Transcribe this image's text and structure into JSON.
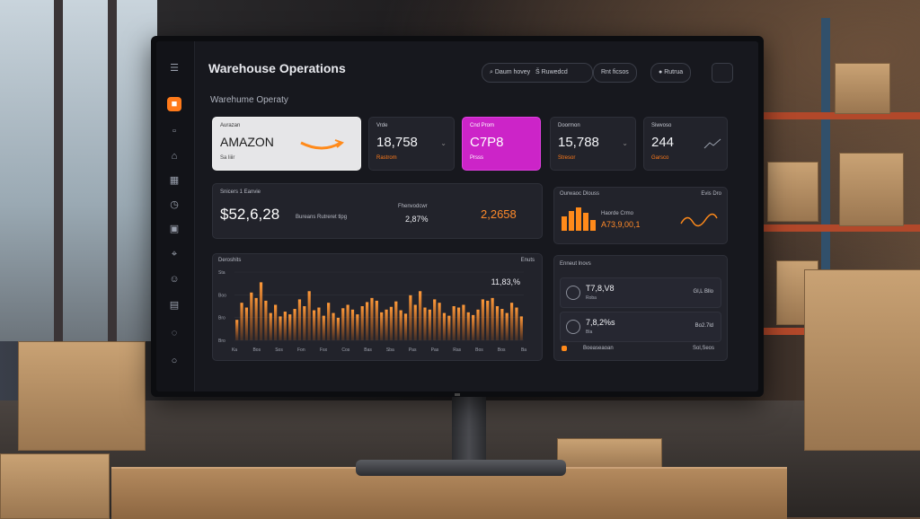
{
  "window_title": "Warehouse Operations",
  "page_subtitle": "Warehume Operaty",
  "header_pills": [
    "Daum hovey",
    "Š Ruwedcd",
    "Rnt ficsos",
    "Rutrua"
  ],
  "kpis": [
    {
      "label": "Aurazan",
      "value": "AMAZON",
      "note": "Sa liiir",
      "style": "light"
    },
    {
      "label": "Vrde",
      "value": "18,758",
      "note": "Rastrom",
      "style": "dark"
    },
    {
      "label": "Cnd Prom",
      "value": "C7P8",
      "note": "Prsss",
      "style": "pink"
    },
    {
      "label": "Doormon",
      "value": "15,788",
      "note": "Stresor",
      "style": "dark"
    },
    {
      "label": "Siwvoso",
      "value": "244",
      "note": "Garsco",
      "style": "dark"
    }
  ],
  "revenue_panel": {
    "label": "Snicers 1 Eanvie",
    "value": "$52,6,28",
    "caption": "Bureans Rutreret tlpg",
    "mid_label": "Fhenvodcwr",
    "mid_value": "2,87%",
    "right_value": "2,2658"
  },
  "orders_panel": {
    "label": "Ourwaoc Dlouss",
    "right_label": "Evis Dro",
    "caption": "Haorde Crmo",
    "value": "A73,9,00,1"
  },
  "chart_panel": {
    "label": "Deroshits",
    "right_label": "Enuts",
    "peak_label": "11,83,%",
    "y_ticks": [
      "Sta",
      "Boo",
      "Bro",
      "Bro"
    ],
    "x_ticks": [
      "Ka",
      "Bos",
      "Sos",
      "Fon",
      "Fsx",
      "Cos",
      "Bas",
      "Sba",
      "Pas",
      "Pas",
      "Ras",
      "Bos",
      "Bos",
      "Ba"
    ]
  },
  "chart_data": {
    "type": "bar",
    "title": "",
    "values": [
      30,
      55,
      48,
      70,
      62,
      85,
      58,
      40,
      52,
      35,
      42,
      38,
      46,
      60,
      50,
      72,
      44,
      48,
      36,
      55,
      40,
      33,
      47,
      52,
      45,
      38,
      50,
      56,
      62,
      58,
      41,
      45,
      49,
      57,
      44,
      39,
      66,
      52,
      72,
      48,
      45,
      60,
      55,
      40,
      36,
      50,
      48,
      52,
      41,
      37,
      45,
      60,
      58,
      62,
      50,
      46,
      40,
      55,
      48,
      35
    ],
    "ylim": [
      0,
      100
    ]
  },
  "recent_panel": {
    "label": "Enneut lnovs",
    "rows": [
      {
        "value": "T7,8,V8",
        "sub": "Roba",
        "right": "Gl,L Bllo"
      },
      {
        "value": "7,8,2%s",
        "sub": "Bla",
        "right": "Bo2.7ld"
      },
      {
        "value": "",
        "sub": "Boeaseaoan",
        "right": "Sol,Seos"
      }
    ]
  },
  "colors": {
    "accent": "#ff7a1a",
    "pink": "#cc24c8",
    "card": "#22232b"
  }
}
